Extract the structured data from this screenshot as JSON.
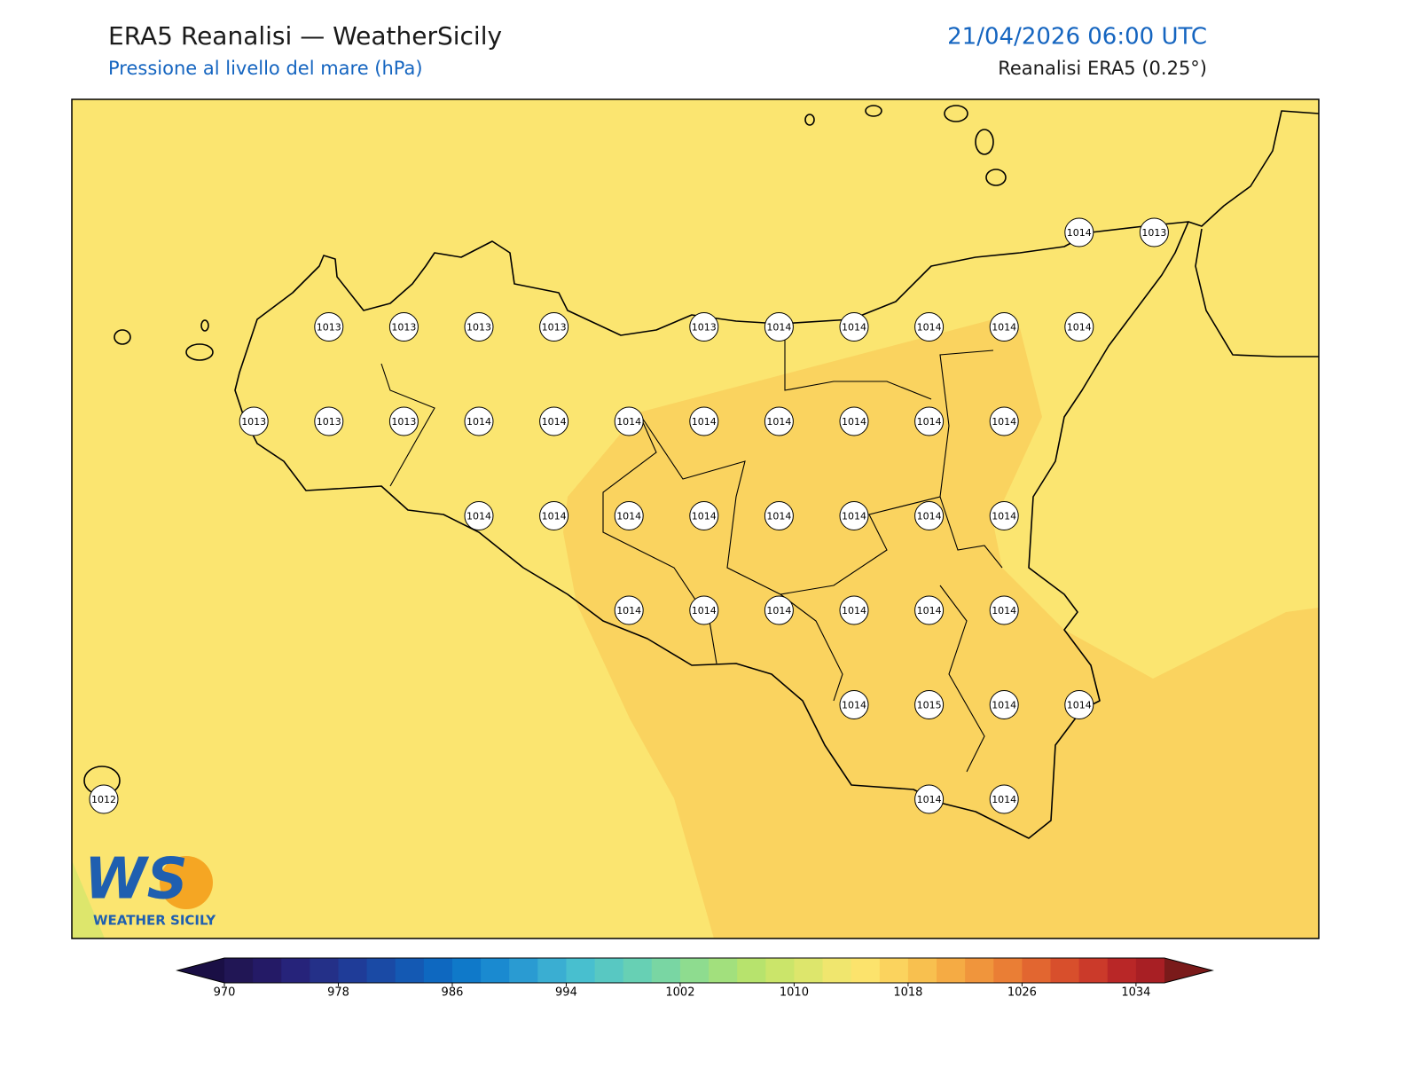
{
  "header": {
    "title": "ERA5 Reanalisi — WeatherSicily",
    "subtitle": "Pressione al livello del mare (hPa)",
    "datetime": "21/04/2026 06:00 UTC",
    "source": "Reanalisi ERA5 (0.25°)"
  },
  "map": {
    "pressure_grid": [
      [
        null,
        null,
        null,
        null,
        null,
        null,
        null,
        null,
        null,
        null,
        null,
        null,
        null,
        1014,
        1013
      ],
      [
        null,
        null,
        null,
        1013,
        1013,
        1013,
        1013,
        null,
        1013,
        1014,
        1014,
        1014,
        1014,
        1014,
        null
      ],
      [
        null,
        null,
        1013,
        1013,
        1013,
        1014,
        1014,
        1014,
        1014,
        1014,
        1014,
        1014,
        1014,
        null,
        null
      ],
      [
        null,
        null,
        null,
        null,
        null,
        1014,
        1014,
        1014,
        1014,
        1014,
        1014,
        1014,
        1014,
        null,
        null
      ],
      [
        null,
        null,
        null,
        null,
        null,
        null,
        null,
        1014,
        1014,
        1014,
        1014,
        1014,
        1014,
        null,
        null
      ],
      [
        null,
        null,
        null,
        null,
        null,
        null,
        null,
        null,
        null,
        null,
        1014,
        1015,
        1014,
        1014,
        null
      ],
      [
        1012,
        null,
        null,
        null,
        null,
        null,
        null,
        null,
        null,
        null,
        null,
        1014,
        1014,
        null,
        null
      ]
    ]
  },
  "colorbar": {
    "range": [
      970,
      1036
    ],
    "ticks": [
      970,
      978,
      986,
      994,
      1002,
      1010,
      1018,
      1026,
      1034
    ],
    "under_color": "#1a0f45",
    "over_color": "#7a1a1a",
    "colors": [
      "#211655",
      "#241a66",
      "#26237a",
      "#243088",
      "#1f3c98",
      "#1a4aa5",
      "#1459b3",
      "#0e68c0",
      "#0f79c9",
      "#1a8ad0",
      "#2a9bd2",
      "#3aaed2",
      "#48bfcf",
      "#58c8c2",
      "#67d0b4",
      "#79d6a3",
      "#8edc8f",
      "#a2e07d",
      "#b7e36d",
      "#cbe56a",
      "#dde66c",
      "#f0e66e",
      "#fce36c",
      "#fbd35e",
      "#f8c04f",
      "#f5ab44",
      "#f0953c",
      "#ea7e35",
      "#e26630",
      "#d84f2c",
      "#cb3a2a",
      "#b92727",
      "#a81f24"
    ]
  },
  "logo": {
    "mark": "WS",
    "text": "WEATHER SICILY"
  }
}
